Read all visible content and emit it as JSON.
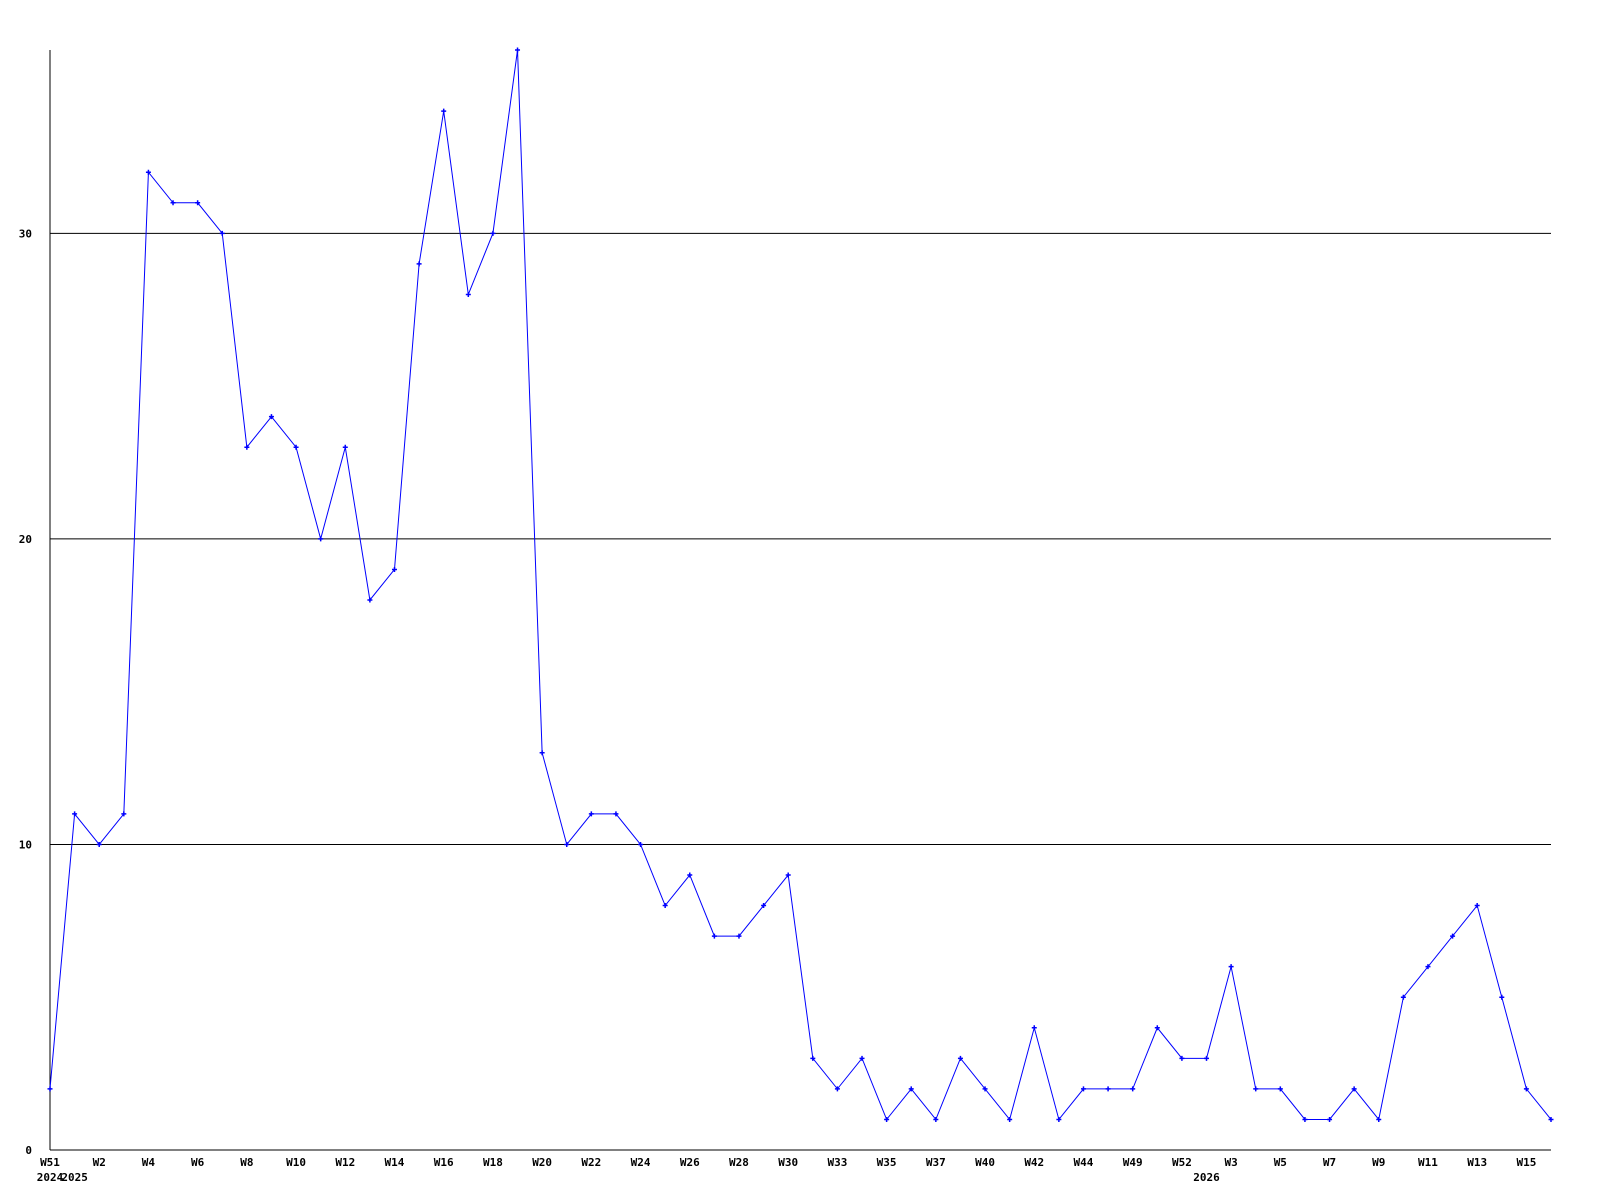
{
  "chart_data": {
    "type": "line",
    "title": "",
    "xlabel": "",
    "ylabel": "",
    "ylim": [
      0,
      36
    ],
    "grid": true,
    "y_ticks": [
      0,
      10,
      20,
      30
    ],
    "line_color": "#0000ff",
    "grid_color": "#000000",
    "values": [
      2,
      11,
      10,
      11,
      32,
      31,
      31,
      30,
      23,
      24,
      23,
      20,
      23,
      18,
      19,
      29,
      34,
      28,
      30,
      36,
      13,
      10,
      11,
      11,
      10,
      8,
      9,
      7,
      7,
      8,
      9,
      3,
      2,
      3,
      1,
      2,
      1,
      3,
      2,
      1,
      4,
      1,
      2,
      2,
      2,
      4,
      3,
      3,
      6,
      2,
      2,
      1,
      1,
      2,
      1,
      5,
      6,
      7,
      8,
      5,
      2,
      1
    ],
    "x_tick_labels": [
      {
        "index": 0,
        "label": "W51"
      },
      {
        "index": 2,
        "label": "W2"
      },
      {
        "index": 4,
        "label": "W4"
      },
      {
        "index": 6,
        "label": "W6"
      },
      {
        "index": 8,
        "label": "W8"
      },
      {
        "index": 10,
        "label": "W10"
      },
      {
        "index": 12,
        "label": "W12"
      },
      {
        "index": 14,
        "label": "W14"
      },
      {
        "index": 16,
        "label": "W16"
      },
      {
        "index": 18,
        "label": "W18"
      },
      {
        "index": 20,
        "label": "W20"
      },
      {
        "index": 22,
        "label": "W22"
      },
      {
        "index": 24,
        "label": "W24"
      },
      {
        "index": 26,
        "label": "W26"
      },
      {
        "index": 28,
        "label": "W28"
      },
      {
        "index": 30,
        "label": "W30"
      },
      {
        "index": 32,
        "label": "W33"
      },
      {
        "index": 34,
        "label": "W35"
      },
      {
        "index": 36,
        "label": "W37"
      },
      {
        "index": 38,
        "label": "W40"
      },
      {
        "index": 40,
        "label": "W42"
      },
      {
        "index": 42,
        "label": "W44"
      },
      {
        "index": 44,
        "label": "W49"
      },
      {
        "index": 46,
        "label": "W52"
      },
      {
        "index": 48,
        "label": "W3"
      },
      {
        "index": 50,
        "label": "W5"
      },
      {
        "index": 52,
        "label": "W7"
      },
      {
        "index": 54,
        "label": "W9"
      },
      {
        "index": 56,
        "label": "W11"
      },
      {
        "index": 58,
        "label": "W13"
      },
      {
        "index": 60,
        "label": "W15"
      }
    ],
    "year_labels": [
      {
        "index": 0,
        "label": "2024"
      },
      {
        "index": 1,
        "label": "2025"
      },
      {
        "index": 47,
        "label": "2026"
      }
    ]
  }
}
